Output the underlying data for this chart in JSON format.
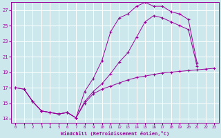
{
  "xlabel": "Windchill (Refroidissement éolien,°C)",
  "bg_color": "#cce8ec",
  "grid_color": "#ffffff",
  "line_color": "#990099",
  "xlim": [
    -0.5,
    23.5
  ],
  "ylim": [
    12.5,
    28.0
  ],
  "yticks": [
    13,
    15,
    17,
    19,
    21,
    23,
    25,
    27
  ],
  "xticks": [
    0,
    1,
    2,
    3,
    4,
    5,
    6,
    7,
    8,
    9,
    10,
    11,
    12,
    13,
    14,
    15,
    16,
    17,
    18,
    19,
    20,
    21,
    22,
    23
  ],
  "series": [
    {
      "x": [
        0,
        1,
        2,
        3,
        4,
        5,
        6,
        7,
        8,
        9,
        10,
        11,
        12,
        13,
        14,
        15,
        16,
        17,
        18,
        19,
        20,
        21
      ],
      "y": [
        17.0,
        16.8,
        15.2,
        14.0,
        13.8,
        13.6,
        13.8,
        13.1,
        16.5,
        18.2,
        20.5,
        24.2,
        26.0,
        26.5,
        27.5,
        28.0,
        27.5,
        27.5,
        26.8,
        26.5,
        25.8,
        20.2
      ]
    },
    {
      "x": [
        0,
        1,
        2,
        3,
        4,
        5,
        6,
        7,
        8,
        9,
        10,
        11,
        12,
        13,
        14,
        15,
        16,
        17,
        18,
        19,
        20,
        21,
        22,
        23
      ],
      "y": [
        17.0,
        16.8,
        15.2,
        14.0,
        13.8,
        13.6,
        13.8,
        13.1,
        15.0,
        16.2,
        16.8,
        17.2,
        17.6,
        18.0,
        18.3,
        18.5,
        18.7,
        18.9,
        19.0,
        19.1,
        19.2,
        19.3,
        19.4,
        19.5
      ]
    },
    {
      "x": [
        1,
        2,
        3,
        4,
        5,
        6,
        7,
        8,
        9,
        10,
        11,
        12,
        13,
        14,
        15,
        16,
        17,
        18,
        19,
        20,
        21
      ],
      "y": [
        16.8,
        15.2,
        14.0,
        13.8,
        13.6,
        13.8,
        13.1,
        15.2,
        16.5,
        17.5,
        18.8,
        20.3,
        21.5,
        23.5,
        25.5,
        26.3,
        26.0,
        25.5,
        25.0,
        24.5,
        19.8
      ]
    }
  ]
}
